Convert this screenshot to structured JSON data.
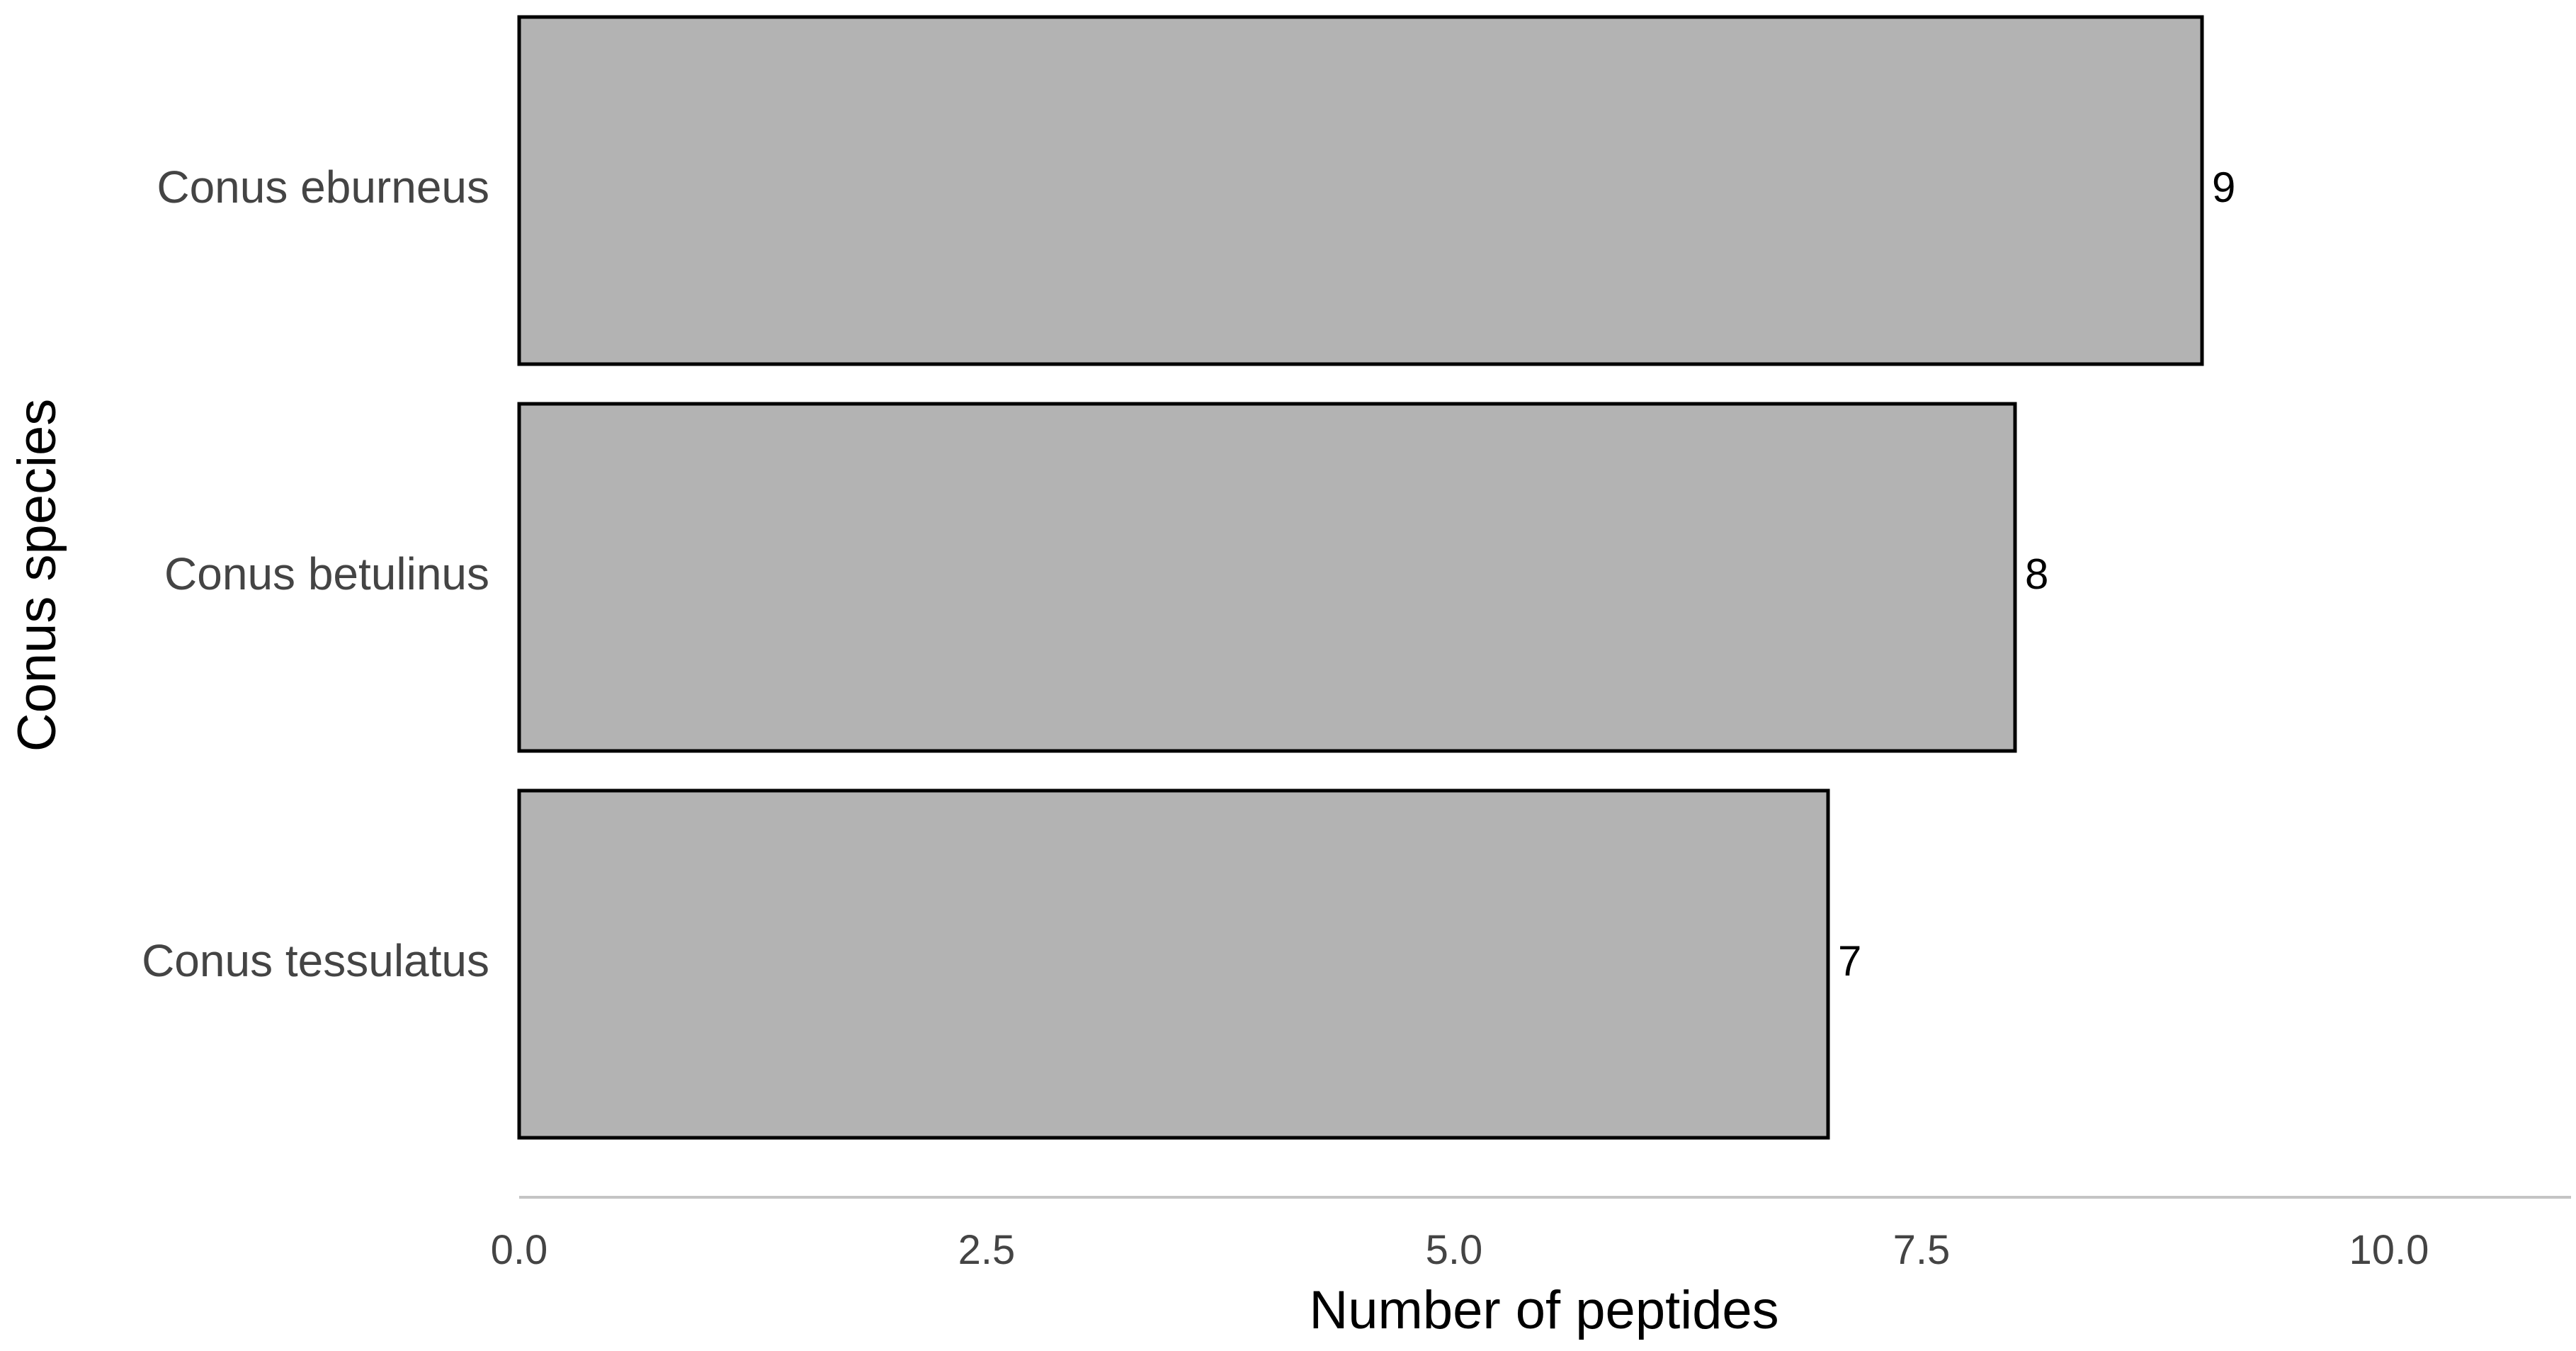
{
  "chart_data": {
    "type": "bar",
    "orientation": "horizontal",
    "categories": [
      "Conus eburneus",
      "Conus betulinus",
      "Conus tessulatus"
    ],
    "values": [
      9,
      8,
      7
    ],
    "data_labels": [
      "9",
      "8",
      "7"
    ],
    "xlabel": "Number of peptides",
    "ylabel": "Conus species",
    "xlim": [
      0,
      11
    ],
    "xticks": [
      0,
      2.5,
      5,
      7.5,
      10
    ],
    "xtick_labels": [
      "0.0",
      "2.5",
      "5.0",
      "7.5",
      "10.0"
    ],
    "grid": false,
    "colors": {
      "bar_fill": "#b3b3b3",
      "bar_stroke": "#000000",
      "axis_line": "#c4c4c4",
      "tick_text": "#444444"
    }
  }
}
